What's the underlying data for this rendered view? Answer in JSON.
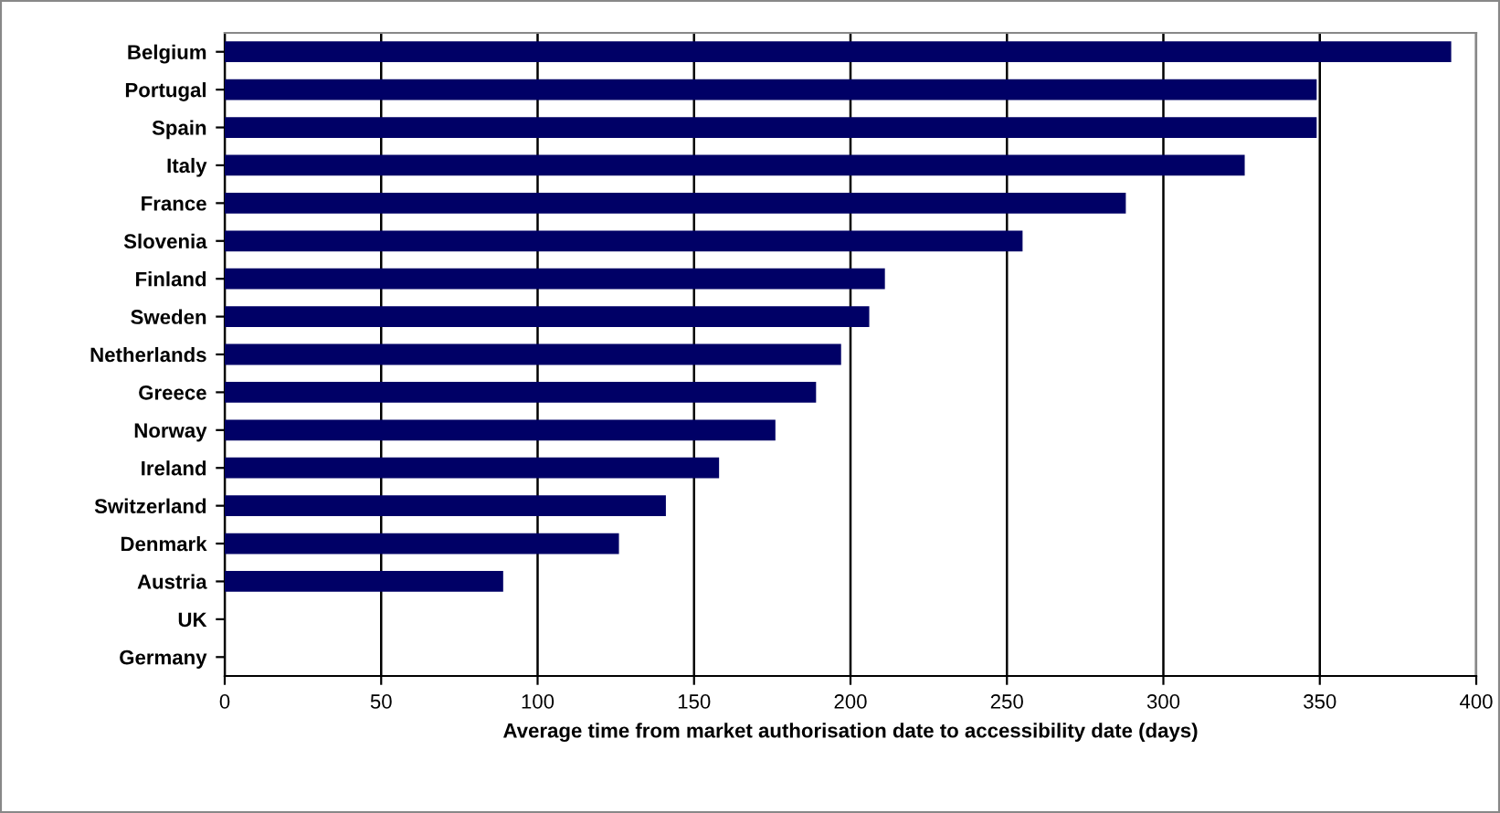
{
  "chart_data": {
    "type": "bar",
    "orientation": "horizontal",
    "xlabel": "Average time from market authorisation date to accessibility date (days)",
    "categories": [
      "Belgium",
      "Portugal",
      "Spain",
      "Italy",
      "France",
      "Slovenia",
      "Finland",
      "Sweden",
      "Netherlands",
      "Greece",
      "Norway",
      "Ireland",
      "Switzerland",
      "Denmark",
      "Austria",
      "UK",
      "Germany"
    ],
    "values": [
      392,
      349,
      349,
      326,
      288,
      255,
      211,
      206,
      197,
      189,
      176,
      158,
      141,
      126,
      89,
      0,
      0
    ],
    "color": "#000066",
    "xlim": [
      0,
      400
    ],
    "xticks": [
      0,
      50,
      100,
      150,
      200,
      250,
      300,
      350,
      400
    ],
    "grid": "x",
    "legend": false
  }
}
